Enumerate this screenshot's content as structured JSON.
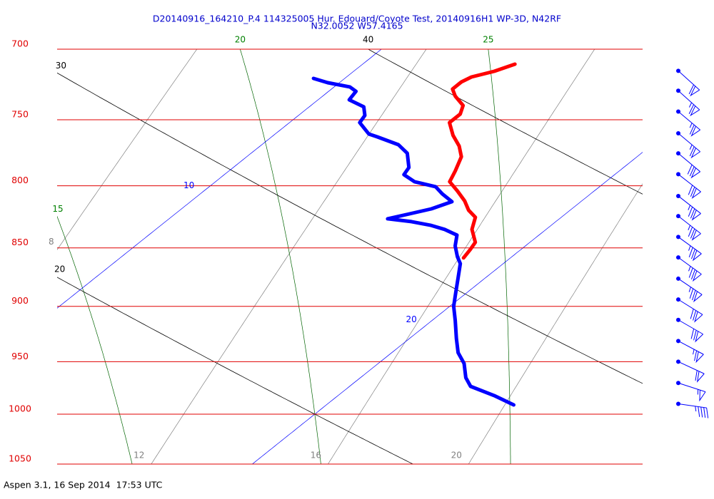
{
  "chart_data": {
    "type": "skewt",
    "title": "D20140916_164210_P.4 114325005 Hur. Edouard/Coyote Test, 20140916H1 WP-3D, N42RF",
    "subtitle": "N32.0052 W57.4165",
    "footer": "Aspen 3.1, 16 Sep 2014  17:53 UTC",
    "y_scale": "log",
    "ylim": [
      1050,
      700
    ],
    "yticks": [
      700,
      750,
      800,
      850,
      900,
      950,
      1000,
      1050
    ],
    "grid": true,
    "grid_color": "#e00000",
    "xlim": [
      15,
      30
    ],
    "isotherms": {
      "color": "#0000ff",
      "values": [
        10,
        20
      ]
    },
    "dry_adiabats": {
      "color": "#000000",
      "values": [
        20,
        30,
        40
      ]
    },
    "moist_adiabats": {
      "color": "#006400",
      "values": [
        15,
        20,
        25
      ]
    },
    "mixing_ratios": {
      "color": "#808080",
      "values": [
        8,
        12,
        16,
        20
      ]
    },
    "series": [
      {
        "color": "#ff0000",
        "pressure": [
          710.3,
          715.3,
          719.3,
          722.8,
          727.8,
          732.9,
          739.6,
          745.8,
          752.1,
          761.5,
          769.5,
          777.6,
          788.5,
          796.8,
          804.1,
          811.9,
          819.3,
          825.0,
          834.8,
          845.4,
          851.3,
          858.4
        ],
        "values": [
          13.9,
          13.6,
          13.2,
          13.1,
          13.1,
          13.4,
          13.9,
          14.1,
          14.1,
          14.6,
          15.1,
          15.5,
          15.8,
          16.0,
          16.5,
          17.0,
          17.4,
          17.8,
          18.1,
          18.6,
          18.7,
          18.8
        ]
      },
      {
        "color": "#0000ff",
        "pressure": [
          720.3,
          723.3,
          726.3,
          729.4,
          735.5,
          740.6,
          746.8,
          752.1,
          760.5,
          762.6,
          768.5,
          774.9,
          785.8,
          791.3,
          796.8,
          800.7,
          806.3,
          812.5,
          818.2,
          822.2,
          826.2,
          828.5,
          831.4,
          834.8,
          839.5,
          848.4,
          857.3,
          863.2,
          875.3,
          887.6,
          900.0,
          912.7,
          928.7,
          941.7,
          951.7,
          965.0,
          973.2,
          982.0,
          991.0
        ],
        "values": [
          9.2,
          9.7,
          10.4,
          10.7,
          10.8,
          11.4,
          11.7,
          11.8,
          12.4,
          12.7,
          13.5,
          14.0,
          14.5,
          14.6,
          15.1,
          15.8,
          16.2,
          16.7,
          16.4,
          16.0,
          15.6,
          16.3,
          16.9,
          17.4,
          17.9,
          18.2,
          18.6,
          18.9,
          19.3,
          19.7,
          20.1,
          20.6,
          21.2,
          21.7,
          22.2,
          22.7,
          23.1,
          24.0,
          24.8
        ]
      }
    ],
    "winds": {
      "color": "#0000ff",
      "pressure": [
        715,
        729,
        744,
        760,
        775,
        791,
        808,
        824,
        841,
        858,
        876,
        894,
        912,
        931,
        950,
        970,
        990
      ],
      "speed": [
        60,
        65,
        65,
        65,
        70,
        70,
        75,
        75,
        75,
        75,
        75,
        70,
        70,
        65,
        60,
        55,
        45
      ],
      "direction": [
        132,
        132,
        130,
        130,
        130,
        128,
        128,
        128,
        126,
        126,
        124,
        122,
        120,
        118,
        115,
        108,
        98
      ]
    }
  }
}
